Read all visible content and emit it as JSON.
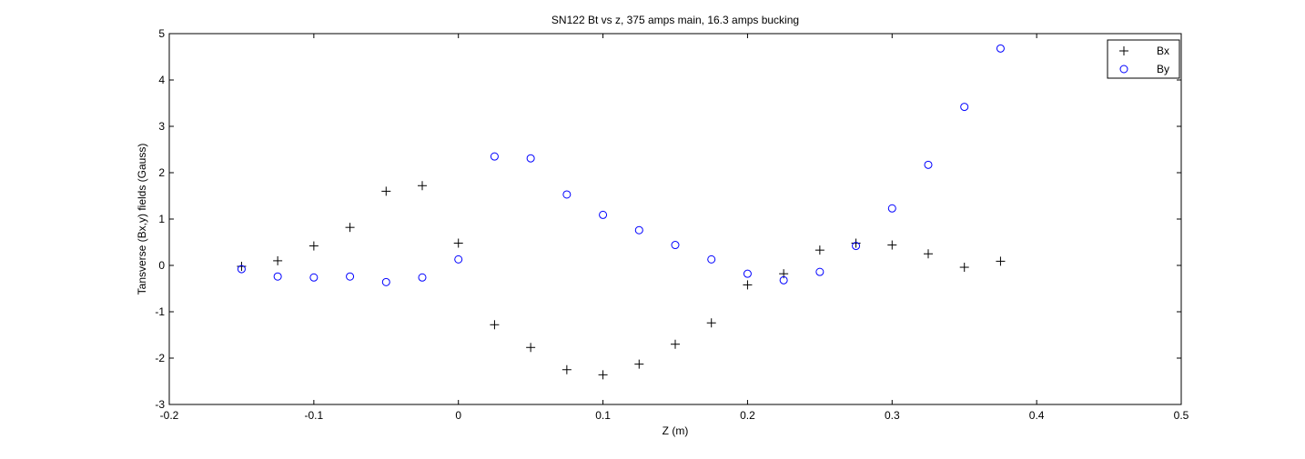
{
  "chart_data": {
    "type": "scatter",
    "title": "SN122 Bt vs z, 375 amps main, 16.3 amps bucking",
    "xlabel": "Z (m)",
    "ylabel": "Tansverse (Bx,y) fields  (Gauss)",
    "xlim": [
      -0.2,
      0.5
    ],
    "ylim": [
      -3,
      5
    ],
    "xticks": [
      -0.2,
      -0.1,
      0,
      0.1,
      0.2,
      0.3,
      0.4,
      0.5
    ],
    "yticks": [
      -3,
      -2,
      -1,
      0,
      1,
      2,
      3,
      4,
      5
    ],
    "xtick_labels": [
      "-0.2",
      "-0.1",
      "0",
      "0.1",
      "0.2",
      "0.3",
      "0.4",
      "0.5"
    ],
    "ytick_labels": [
      "-3",
      "-2",
      "-1",
      "0",
      "1",
      "2",
      "3",
      "4",
      "5"
    ],
    "grid": false,
    "legend_position": "top-right",
    "series": [
      {
        "name": "Bx",
        "marker": "plus",
        "color": "#000000",
        "x": [
          -0.15,
          -0.125,
          -0.1,
          -0.075,
          -0.05,
          -0.025,
          0,
          0.025,
          0.05,
          0.075,
          0.1,
          0.125,
          0.15,
          0.175,
          0.2,
          0.225,
          0.25,
          0.275,
          0.3,
          0.325,
          0.35,
          0.375
        ],
        "y": [
          -0.02,
          0.1,
          0.42,
          0.82,
          1.6,
          1.72,
          0.48,
          -1.28,
          -1.77,
          -2.25,
          -2.36,
          -2.13,
          -1.7,
          -1.24,
          -0.42,
          -0.18,
          0.33,
          0.48,
          0.44,
          0.25,
          -0.04,
          0.09
        ]
      },
      {
        "name": "By",
        "marker": "circle",
        "color": "#0000ff",
        "x": [
          -0.15,
          -0.125,
          -0.1,
          -0.075,
          -0.05,
          -0.025,
          0,
          0.025,
          0.05,
          0.075,
          0.1,
          0.125,
          0.15,
          0.175,
          0.2,
          0.225,
          0.25,
          0.275,
          0.3,
          0.325,
          0.35,
          0.375
        ],
        "y": [
          -0.08,
          -0.24,
          -0.26,
          -0.24,
          -0.36,
          -0.26,
          0.13,
          2.35,
          2.31,
          1.53,
          1.09,
          0.76,
          0.44,
          0.13,
          -0.18,
          -0.32,
          -0.14,
          0.42,
          1.23,
          2.17,
          3.42,
          4.68
        ]
      }
    ]
  }
}
